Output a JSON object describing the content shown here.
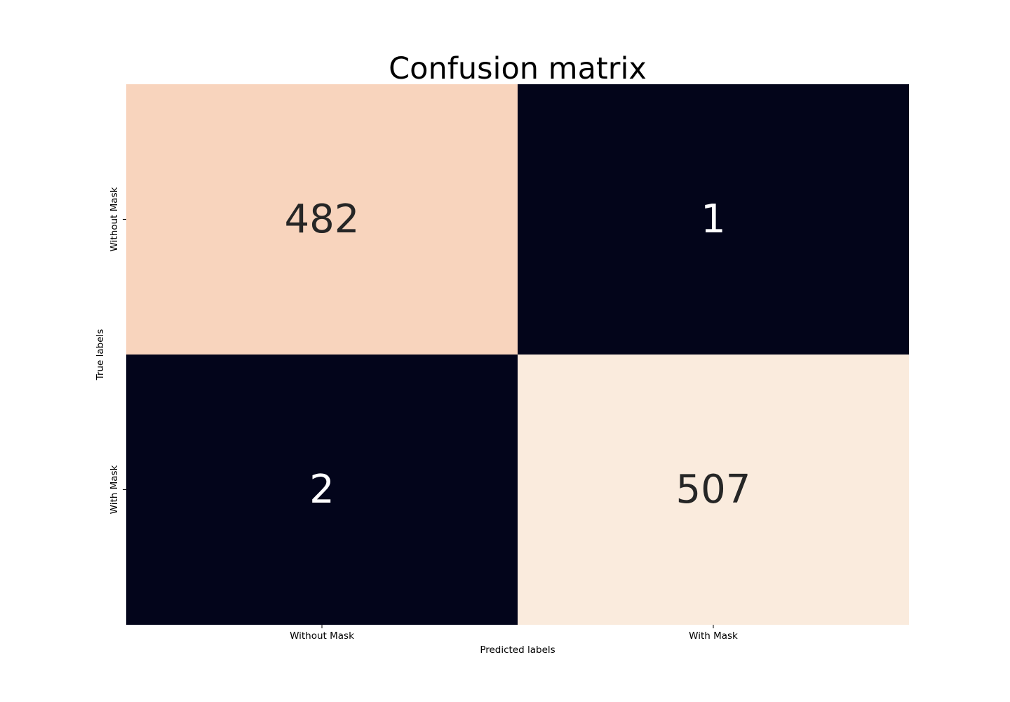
{
  "chart_data": {
    "type": "heatmap",
    "title": "Confusion matrix",
    "xlabel": "Predicted labels",
    "ylabel": "True labels",
    "x_categories": [
      "Without Mask",
      "With Mask"
    ],
    "y_categories": [
      "Without Mask",
      "With Mask"
    ],
    "values": [
      [
        482,
        1
      ],
      [
        2,
        507
      ]
    ],
    "colormap": "rocket",
    "colorbar": false,
    "annotations": true
  }
}
